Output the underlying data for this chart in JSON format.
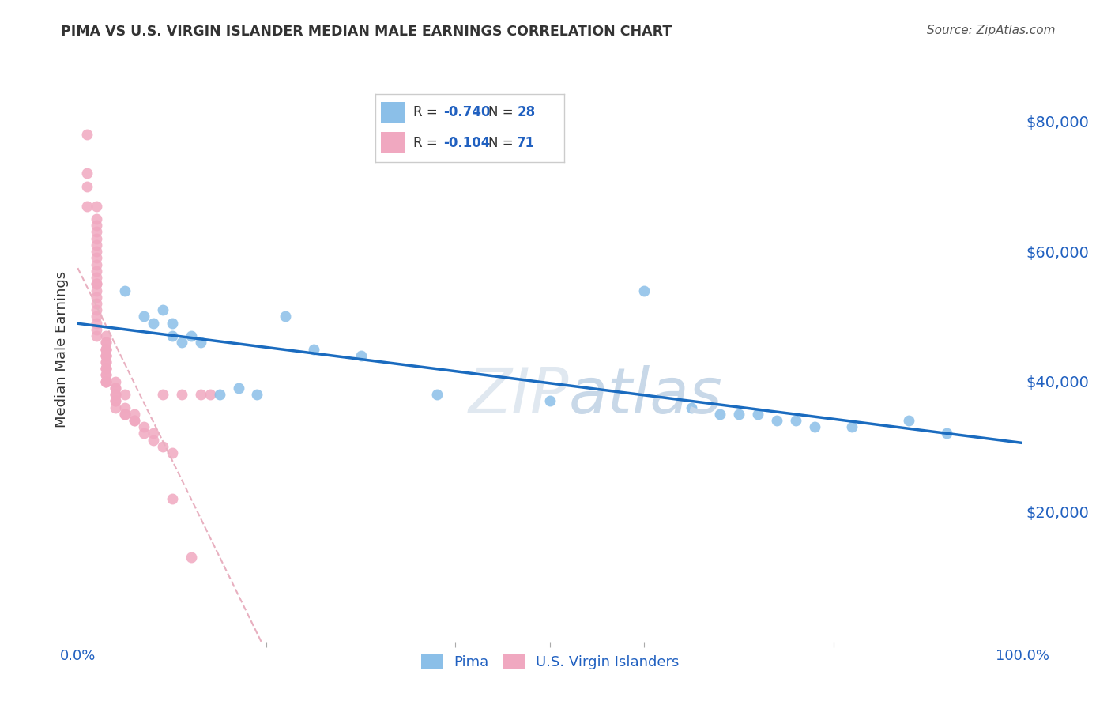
{
  "title": "PIMA VS U.S. VIRGIN ISLANDER MEDIAN MALE EARNINGS CORRELATION CHART",
  "source": "Source: ZipAtlas.com",
  "ylabel": "Median Male Earnings",
  "ytick_labels": [
    "$20,000",
    "$40,000",
    "$60,000",
    "$80,000"
  ],
  "ytick_values": [
    20000,
    40000,
    60000,
    80000
  ],
  "pima_x": [
    0.05,
    0.07,
    0.08,
    0.09,
    0.1,
    0.1,
    0.11,
    0.12,
    0.13,
    0.15,
    0.17,
    0.19,
    0.22,
    0.25,
    0.3,
    0.38,
    0.5,
    0.6,
    0.65,
    0.68,
    0.7,
    0.72,
    0.74,
    0.76,
    0.78,
    0.82,
    0.88,
    0.92
  ],
  "pima_y": [
    54000,
    50000,
    49000,
    51000,
    49000,
    47000,
    46000,
    47000,
    46000,
    38000,
    39000,
    38000,
    50000,
    45000,
    44000,
    38000,
    37000,
    54000,
    36000,
    35000,
    35000,
    35000,
    34000,
    34000,
    33000,
    33000,
    34000,
    32000
  ],
  "vi_x": [
    0.01,
    0.01,
    0.01,
    0.01,
    0.02,
    0.02,
    0.02,
    0.02,
    0.02,
    0.02,
    0.02,
    0.02,
    0.02,
    0.02,
    0.02,
    0.02,
    0.02,
    0.02,
    0.02,
    0.02,
    0.02,
    0.02,
    0.02,
    0.02,
    0.02,
    0.03,
    0.03,
    0.03,
    0.03,
    0.03,
    0.03,
    0.03,
    0.03,
    0.03,
    0.03,
    0.03,
    0.03,
    0.03,
    0.03,
    0.03,
    0.03,
    0.03,
    0.03,
    0.03,
    0.04,
    0.04,
    0.04,
    0.04,
    0.04,
    0.04,
    0.04,
    0.04,
    0.05,
    0.05,
    0.05,
    0.05,
    0.06,
    0.06,
    0.06,
    0.07,
    0.07,
    0.08,
    0.08,
    0.09,
    0.09,
    0.1,
    0.1,
    0.11,
    0.12,
    0.13,
    0.14
  ],
  "vi_y": [
    78000,
    72000,
    70000,
    67000,
    67000,
    65000,
    64000,
    63000,
    62000,
    61000,
    60000,
    59000,
    58000,
    57000,
    56000,
    55000,
    55000,
    54000,
    53000,
    52000,
    51000,
    50000,
    49000,
    48000,
    47000,
    47000,
    46000,
    46000,
    45000,
    45000,
    45000,
    44000,
    44000,
    44000,
    43000,
    43000,
    42000,
    42000,
    42000,
    41000,
    41000,
    40000,
    40000,
    40000,
    40000,
    39000,
    39000,
    38000,
    38000,
    37000,
    37000,
    36000,
    36000,
    35000,
    35000,
    38000,
    35000,
    34000,
    34000,
    33000,
    32000,
    32000,
    31000,
    30000,
    38000,
    29000,
    22000,
    38000,
    13000,
    38000,
    38000
  ],
  "pima_color": "#8bbfe8",
  "vi_color": "#f0a8c0",
  "pima_trendline_color": "#1a6bbf",
  "vi_trendline_color": "#e8b0c0",
  "background_color": "#ffffff",
  "ylim": [
    0,
    90000
  ],
  "xlim": [
    0.0,
    1.0
  ],
  "grid_color": "#d0d0d0",
  "legend_color": "#2060c0",
  "text_color": "#333333",
  "watermark_color": "#e0e8f0",
  "legend_r_pima": "R = -0.740",
  "legend_n_pima": "N = 28",
  "legend_r_vi": "R = -0.104",
  "legend_n_vi": "N = 71"
}
